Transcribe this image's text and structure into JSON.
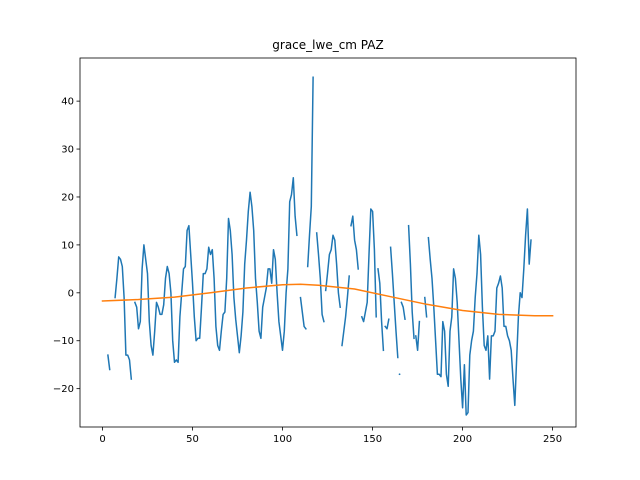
{
  "chart_data": {
    "type": "line",
    "title": "grace_lwe_cm PAZ",
    "xlabel": "",
    "ylabel": "",
    "xlim": [
      -12.5,
      263
    ],
    "ylim": [
      -28,
      49
    ],
    "x_ticks": [
      0,
      50,
      100,
      150,
      200,
      250
    ],
    "y_ticks": [
      -20,
      -10,
      0,
      10,
      20,
      30,
      40
    ],
    "grid": false,
    "colors": {
      "observed": "#1f77b4",
      "seasonal": "#ff7f0e"
    },
    "series": [
      {
        "key": "observed",
        "segments": [
          [
            [
              3,
              -13
            ],
            [
              4,
              -16
            ]
          ],
          [
            [
              7,
              -1
            ],
            [
              8,
              3
            ],
            [
              9,
              7.5
            ],
            [
              10,
              7
            ],
            [
              11,
              5.5
            ],
            [
              12,
              -1
            ],
            [
              13,
              -13
            ],
            [
              14,
              -13
            ],
            [
              15,
              -14
            ],
            [
              16,
              -18
            ]
          ],
          [
            [
              18,
              -2
            ],
            [
              19,
              -3
            ],
            [
              20,
              -7.5
            ],
            [
              21,
              -6
            ],
            [
              22,
              5
            ],
            [
              23,
              10
            ],
            [
              24,
              7
            ],
            [
              25,
              4
            ],
            [
              26,
              -6
            ],
            [
              27,
              -11
            ],
            [
              28,
              -13
            ],
            [
              29,
              -8
            ],
            [
              30,
              -2
            ],
            [
              31,
              -3
            ],
            [
              32,
              -4.5
            ],
            [
              33,
              -4.5
            ],
            [
              34,
              -2.5
            ],
            [
              35,
              3
            ],
            [
              36,
              5.5
            ],
            [
              37,
              4
            ],
            [
              38,
              0
            ],
            [
              39,
              -10
            ],
            [
              40,
              -14.5
            ],
            [
              41,
              -14
            ],
            [
              42,
              -14.5
            ],
            [
              43,
              -5
            ],
            [
              44,
              0
            ],
            [
              45,
              5
            ],
            [
              46,
              5.5
            ],
            [
              47,
              13
            ],
            [
              48,
              14
            ],
            [
              49,
              8
            ],
            [
              50,
              2
            ],
            [
              51,
              -5
            ],
            [
              52,
              -10
            ],
            [
              53,
              -9.5
            ],
            [
              54,
              -9.5
            ],
            [
              55,
              -3
            ],
            [
              56,
              4
            ],
            [
              57,
              4
            ],
            [
              58,
              5
            ],
            [
              59,
              9.5
            ],
            [
              60,
              8
            ],
            [
              61,
              9
            ],
            [
              62,
              3
            ],
            [
              63,
              -7
            ],
            [
              64,
              -11
            ],
            [
              65,
              -12
            ],
            [
              66,
              -8
            ],
            [
              67,
              -4.5
            ],
            [
              68,
              -4
            ],
            [
              69,
              3
            ],
            [
              70,
              15.5
            ],
            [
              71,
              13
            ],
            [
              72,
              8
            ],
            [
              73,
              -1
            ],
            [
              74,
              -5.5
            ],
            [
              75,
              -9
            ],
            [
              76,
              -12.5
            ],
            [
              77,
              -9
            ],
            [
              78,
              -4
            ],
            [
              79,
              6
            ],
            [
              80,
              11
            ],
            [
              81,
              17
            ],
            [
              82,
              21
            ],
            [
              83,
              18
            ],
            [
              84,
              13
            ],
            [
              85,
              3
            ],
            [
              86,
              -2
            ],
            [
              87,
              -8
            ],
            [
              88,
              -9.5
            ],
            [
              89,
              -3
            ],
            [
              90,
              -1
            ],
            [
              91,
              1
            ],
            [
              92,
              5
            ],
            [
              93,
              5
            ],
            [
              94,
              2
            ],
            [
              95,
              9
            ],
            [
              96,
              7
            ],
            [
              97,
              0
            ],
            [
              98,
              -6
            ],
            [
              99,
              -9
            ],
            [
              100,
              -12
            ],
            [
              101,
              -8
            ],
            [
              102,
              0
            ],
            [
              103,
              5
            ],
            [
              104,
              19
            ],
            [
              105,
              20.5
            ],
            [
              106,
              24
            ],
            [
              107,
              16
            ],
            [
              108,
              12
            ]
          ],
          [
            [
              110,
              -1
            ],
            [
              111,
              -4
            ],
            [
              112,
              -7
            ],
            [
              113,
              -7.5
            ]
          ],
          [
            [
              114,
              5.5
            ],
            [
              115,
              12
            ],
            [
              116,
              18
            ],
            [
              117,
              45
            ]
          ],
          [
            [
              119,
              12.5
            ],
            [
              120,
              8
            ],
            [
              121,
              3
            ],
            [
              122,
              -4.5
            ],
            [
              123,
              -6
            ]
          ],
          [
            [
              124,
              0.5
            ],
            [
              125,
              4
            ],
            [
              126,
              8
            ],
            [
              127,
              9
            ],
            [
              128,
              12
            ],
            [
              129,
              11
            ],
            [
              130,
              6
            ],
            [
              131,
              0
            ],
            [
              132,
              -3
            ]
          ],
          [
            [
              133,
              -11
            ],
            [
              134,
              -8
            ],
            [
              135,
              -5
            ],
            [
              136,
              -1
            ],
            [
              137,
              3.5
            ]
          ],
          [
            [
              138,
              14
            ],
            [
              139,
              16
            ],
            [
              140,
              11
            ],
            [
              141,
              9
            ],
            [
              142,
              5
            ]
          ],
          [
            [
              144,
              -5
            ],
            [
              145,
              -6
            ],
            [
              146,
              -4
            ],
            [
              147,
              -2
            ],
            [
              148,
              8
            ],
            [
              149,
              17.5
            ],
            [
              150,
              17
            ],
            [
              151,
              9
            ],
            [
              152,
              -5
            ]
          ],
          [
            [
              153,
              5
            ],
            [
              154,
              2
            ],
            [
              155,
              -6
            ],
            [
              156,
              -12
            ]
          ],
          [
            [
              157,
              -7
            ],
            [
              158,
              -7.5
            ],
            [
              159,
              -5.5
            ]
          ],
          [
            [
              160,
              9.5
            ],
            [
              161,
              4
            ],
            [
              162,
              -2
            ],
            [
              163,
              -8
            ],
            [
              164,
              -13.5
            ]
          ],
          [
            [
              165,
              -17
            ]
          ],
          [
            [
              166,
              -2
            ],
            [
              167,
              -3
            ],
            [
              168,
              -5.5
            ]
          ],
          [
            [
              170,
              14
            ],
            [
              171,
              6
            ],
            [
              172,
              -4
            ],
            [
              173,
              -9.5
            ]
          ],
          [
            [
              174,
              -9
            ],
            [
              175,
              -12
            ],
            [
              176,
              -6
            ]
          ],
          [
            [
              179,
              -1
            ],
            [
              180,
              -5
            ]
          ],
          [
            [
              181,
              11.5
            ],
            [
              182,
              7
            ],
            [
              183,
              3
            ],
            [
              184,
              -3
            ],
            [
              185,
              -10
            ],
            [
              186,
              -17
            ],
            [
              187,
              -17
            ],
            [
              188,
              -17.5
            ],
            [
              189,
              -6
            ],
            [
              190,
              -8
            ],
            [
              191,
              -17
            ],
            [
              192,
              -19.5
            ],
            [
              193,
              -8
            ],
            [
              194,
              -5
            ],
            [
              195,
              5
            ],
            [
              196,
              3
            ],
            [
              197,
              -2
            ],
            [
              198,
              -10
            ],
            [
              199,
              -18
            ],
            [
              200,
              -24
            ],
            [
              201,
              -15
            ],
            [
              202,
              -25.5
            ],
            [
              203,
              -25
            ],
            [
              204,
              -13
            ],
            [
              205,
              -10
            ],
            [
              206,
              -8
            ],
            [
              207,
              -1
            ],
            [
              208,
              4
            ],
            [
              209,
              12
            ],
            [
              210,
              8
            ],
            [
              211,
              -3
            ],
            [
              212,
              -11
            ],
            [
              213,
              -12
            ],
            [
              214,
              -9
            ],
            [
              215,
              -18
            ],
            [
              216,
              -9
            ],
            [
              217,
              -9
            ],
            [
              218,
              -8
            ],
            [
              219,
              1
            ],
            [
              220,
              2
            ],
            [
              221,
              3.5
            ],
            [
              222,
              1
            ],
            [
              223,
              -7
            ],
            [
              224,
              -7
            ],
            [
              225,
              -9
            ],
            [
              226,
              -10
            ],
            [
              227,
              -12
            ],
            [
              228,
              -18
            ],
            [
              229,
              -23.5
            ],
            [
              230,
              -14
            ],
            [
              231,
              -5
            ],
            [
              232,
              0
            ],
            [
              233,
              -1
            ],
            [
              234,
              5
            ],
            [
              235,
              12
            ],
            [
              236,
              17.5
            ],
            [
              237,
              6
            ],
            [
              238,
              11
            ]
          ]
        ]
      },
      {
        "key": "seasonal",
        "points": [
          [
            0,
            -1.7
          ],
          [
            20,
            -1.4
          ],
          [
            40,
            -0.9
          ],
          [
            60,
            0
          ],
          [
            80,
            1.0
          ],
          [
            100,
            1.7
          ],
          [
            110,
            1.8
          ],
          [
            120,
            1.6
          ],
          [
            140,
            0.8
          ],
          [
            160,
            -0.8
          ],
          [
            180,
            -2.4
          ],
          [
            200,
            -3.7
          ],
          [
            220,
            -4.5
          ],
          [
            240,
            -4.8
          ],
          [
            250,
            -4.8
          ]
        ]
      }
    ]
  }
}
